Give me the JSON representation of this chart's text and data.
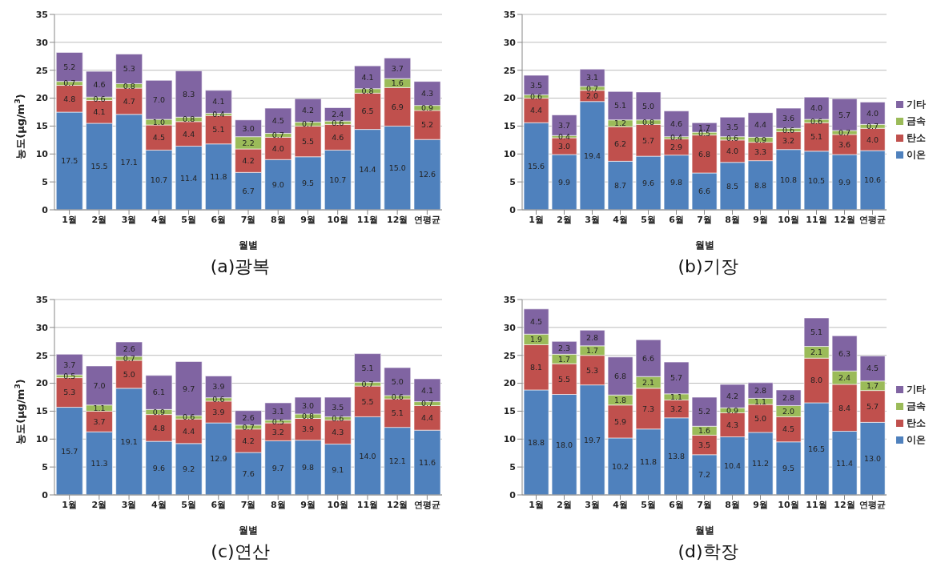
{
  "chart_data": [
    {
      "type": "bar",
      "stacked": true,
      "title": "(a)광복",
      "xlabel": "월별",
      "ylabel": "농도(μg/m$^{3}$)",
      "categories": [
        "1월",
        "2월",
        "3월",
        "4월",
        "5월",
        "6월",
        "7월",
        "8월",
        "9월",
        "10월",
        "11월",
        "12월",
        "연평균"
      ],
      "ylim": [
        0,
        35
      ],
      "yticks": [
        0,
        5,
        10,
        15,
        20,
        25,
        30,
        35
      ],
      "grid": "y",
      "series": [
        {
          "color": "#4f81bd",
          "values": [
            17.5,
            15.5,
            17.1,
            10.7,
            11.4,
            11.8,
            6.7,
            9.0,
            9.5,
            10.7,
            14.4,
            15.0,
            12.6
          ],
          "value_labels": [
            "17.5",
            "15.5",
            "17.1",
            "10.7",
            "11.4",
            "11.8",
            "6.7",
            "9.0",
            "9.5",
            "10.7",
            "14.4",
            "15.0",
            "12.6"
          ]
        },
        {
          "color": "#c0504d",
          "values": [
            4.8,
            4.1,
            4.7,
            4.5,
            4.4,
            5.1,
            4.2,
            4.0,
            5.5,
            4.6,
            6.5,
            6.9,
            5.2
          ],
          "value_labels": [
            "4.8",
            "4.1",
            "4.7",
            "4.5",
            "4.4",
            "5.1",
            "4.2",
            "4.0",
            "5.5",
            "4.6",
            "6.5",
            "6.9",
            "5.2"
          ]
        },
        {
          "color": "#9bbb59",
          "values": [
            0.7,
            0.6,
            0.8,
            1.0,
            0.8,
            0.4,
            2.2,
            0.7,
            0.7,
            0.6,
            0.8,
            1.6,
            0.9
          ],
          "value_labels": [
            "0.7",
            "0.6",
            "0.8",
            "1.0",
            "0.8",
            "0.4",
            "2.2",
            "0.7",
            "0.7",
            "0.6",
            "0.8",
            "1.6",
            "0.9"
          ]
        },
        {
          "color": "#8064a2",
          "values": [
            5.2,
            4.6,
            5.3,
            7.0,
            8.3,
            4.1,
            3.0,
            4.5,
            4.2,
            2.4,
            4.1,
            3.7,
            4.3
          ],
          "value_labels": [
            "5.2",
            "4.6",
            "5.3",
            "7.0",
            "8.3",
            "4.1",
            "3.0",
            "4.5",
            "4.2",
            "2.4",
            "4.1",
            "3.7",
            "4.3"
          ]
        }
      ]
    },
    {
      "type": "bar",
      "stacked": true,
      "title": "(b)기장",
      "xlabel": "월별",
      "categories": [
        "1월",
        "2월",
        "3월",
        "4월",
        "5월",
        "6월",
        "7월",
        "8월",
        "9월",
        "10월",
        "11월",
        "12월",
        "연평균"
      ],
      "ylim": [
        0,
        35
      ],
      "yticks": [
        0,
        5,
        10,
        15,
        20,
        25,
        30,
        35
      ],
      "grid": "y",
      "legend": "right",
      "series": [
        {
          "name": "이온",
          "color": "#4f81bd",
          "values": [
            15.6,
            9.9,
            19.4,
            8.7,
            9.6,
            9.8,
            6.6,
            8.5,
            8.8,
            10.8,
            10.5,
            9.9,
            10.6
          ],
          "value_labels": [
            "15.6",
            "9.9",
            "19.4",
            "8.7",
            "9.6",
            "9.8",
            "6.6",
            "8.5",
            "8.8",
            "10.8",
            "10.5",
            "9.9",
            "10.6"
          ]
        },
        {
          "name": "탄소",
          "color": "#c0504d",
          "values": [
            4.4,
            3.0,
            2.0,
            6.2,
            5.7,
            2.9,
            6.8,
            4.0,
            3.3,
            3.2,
            5.1,
            3.6,
            4.0
          ],
          "value_labels": [
            "4.4",
            "3.0",
            "2.0",
            "6.2",
            "5.7",
            "2.9",
            "6.8",
            "4.0",
            "3.3",
            "3.2",
            "5.1",
            "3.6",
            "4.0"
          ]
        },
        {
          "name": "금속",
          "color": "#9bbb59",
          "values": [
            0.6,
            0.4,
            0.7,
            1.2,
            0.8,
            0.4,
            0.5,
            0.6,
            0.9,
            0.6,
            0.6,
            0.7,
            0.7
          ],
          "value_labels": [
            "0.6",
            "0.4",
            "0.7",
            "1.2",
            "0.8",
            "0.4",
            "0.5",
            "0.6",
            "0.9",
            "0.6",
            "0.6",
            "0.7",
            "0.7"
          ]
        },
        {
          "name": "기타",
          "color": "#8064a2",
          "values": [
            3.5,
            3.7,
            3.1,
            5.1,
            5.0,
            4.6,
            1.7,
            3.5,
            4.4,
            3.6,
            4.0,
            5.7,
            4.0
          ],
          "value_labels": [
            "3.5",
            "3.7",
            "3.1",
            "5.1",
            "5.0",
            "4.6",
            "1.7",
            "3.5",
            "4.4",
            "3.6",
            "4.0",
            "5.7",
            "4.0"
          ]
        }
      ]
    },
    {
      "type": "bar",
      "stacked": true,
      "title": "(c)연산",
      "xlabel": "월별",
      "ylabel": "농도(μg/m$^{3}$)",
      "categories": [
        "1월",
        "2월",
        "3월",
        "4월",
        "5월",
        "6월",
        "7월",
        "8월",
        "9월",
        "10월",
        "11월",
        "12월",
        "연평균"
      ],
      "ylim": [
        0,
        35
      ],
      "yticks": [
        0,
        5,
        10,
        15,
        20,
        25,
        30,
        35
      ],
      "grid": "y",
      "series": [
        {
          "color": "#4f81bd",
          "values": [
            15.7,
            11.3,
            19.1,
            9.6,
            9.2,
            12.9,
            7.6,
            9.7,
            9.8,
            9.1,
            14.0,
            12.1,
            11.6
          ],
          "value_labels": [
            "15.7",
            "11.3",
            "19.1",
            "9.6",
            "9.2",
            "12.9",
            "7.6",
            "9.7",
            "9.8",
            "9.1",
            "14.0",
            "12.1",
            "11.6"
          ]
        },
        {
          "color": "#c0504d",
          "values": [
            5.3,
            3.7,
            5.0,
            4.8,
            4.4,
            3.9,
            4.2,
            3.2,
            3.9,
            4.3,
            5.5,
            5.1,
            4.4
          ],
          "value_labels": [
            "5.3",
            "3.7",
            "5.0",
            "4.8",
            "4.4",
            "3.9",
            "4.2",
            "3.2",
            "3.9",
            "4.3",
            "5.5",
            "5.1",
            "4.4"
          ]
        },
        {
          "color": "#9bbb59",
          "values": [
            0.5,
            1.1,
            0.7,
            0.9,
            0.6,
            0.6,
            0.7,
            0.5,
            0.8,
            0.6,
            0.7,
            0.6,
            0.7
          ],
          "value_labels": [
            "0.5",
            "1.1",
            "0.7",
            "0.9",
            "0.6",
            "0.6",
            "0.7",
            "0.5",
            "0.8",
            "0.6",
            "0.7",
            "0.6",
            "0.7"
          ]
        },
        {
          "color": "#8064a2",
          "values": [
            3.7,
            7.0,
            2.6,
            6.1,
            9.7,
            3.9,
            2.6,
            3.1,
            3.0,
            3.5,
            5.1,
            5.0,
            4.1
          ],
          "value_labels": [
            "3.7",
            "7.0",
            "2.6",
            "6.1",
            "9.7",
            "3.9",
            "2.6",
            "3.1",
            "3.0",
            "3.5",
            "5.1",
            "5.0",
            "4.1"
          ]
        }
      ]
    },
    {
      "type": "bar",
      "stacked": true,
      "title": "(d)학장",
      "xlabel": "월별",
      "categories": [
        "1월",
        "2월",
        "3월",
        "4월",
        "5월",
        "6월",
        "7월",
        "8월",
        "9월",
        "10월",
        "11월",
        "12월",
        "연평균"
      ],
      "ylim": [
        0,
        35
      ],
      "yticks": [
        0,
        5,
        10,
        15,
        20,
        25,
        30,
        35
      ],
      "grid": "y",
      "legend": "right",
      "series": [
        {
          "name": "이온",
          "color": "#4f81bd",
          "values": [
            18.8,
            18.0,
            19.7,
            10.2,
            11.8,
            13.8,
            7.2,
            10.4,
            11.2,
            9.5,
            16.5,
            11.4,
            13.0
          ],
          "value_labels": [
            "18.8",
            "18.0",
            "19.7",
            "10.2",
            "11.8",
            "13.8",
            "7.2",
            "10.4",
            "11.2",
            "9.5",
            "16.5",
            "11.4",
            "13.0"
          ]
        },
        {
          "name": "탄소",
          "color": "#c0504d",
          "values": [
            8.1,
            5.5,
            5.3,
            5.9,
            7.3,
            3.2,
            3.5,
            4.3,
            5.0,
            4.5,
            8.0,
            8.4,
            5.7
          ],
          "value_labels": [
            "8.1",
            "5.5",
            "5.3",
            "5.9",
            "7.3",
            "3.2",
            "3.5",
            "4.3",
            "5.0",
            "4.5",
            "8.0",
            "8.4",
            "5.7"
          ]
        },
        {
          "name": "금속",
          "color": "#9bbb59",
          "values": [
            1.9,
            1.7,
            1.7,
            1.8,
            2.1,
            1.1,
            1.6,
            0.9,
            1.1,
            2.0,
            2.1,
            2.4,
            1.7
          ],
          "value_labels": [
            "1.9",
            "1.7",
            "1.7",
            "1.8",
            "2.1",
            "1.1",
            "1.6",
            "0.9",
            "1.1",
            "2.0",
            "2.1",
            "2.4",
            "1.7"
          ]
        },
        {
          "name": "기타",
          "color": "#8064a2",
          "values": [
            4.5,
            2.3,
            2.8,
            6.8,
            6.6,
            5.7,
            5.2,
            4.2,
            2.8,
            2.8,
            5.1,
            6.3,
            4.5
          ],
          "value_labels": [
            "4.5",
            "2.3",
            "2.8",
            "6.8",
            "6.6",
            "5.7",
            "5.2",
            "4.2",
            "2.8",
            "2.8",
            "5.1",
            "6.3",
            "4.5"
          ]
        }
      ]
    }
  ]
}
